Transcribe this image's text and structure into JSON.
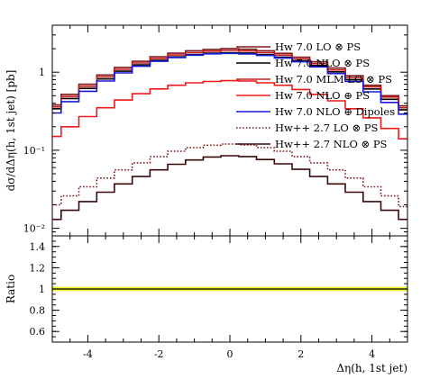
{
  "chart_data": [
    {
      "type": "line",
      "ylabel": "dσ/dΔη(h, 1st jet) [pb]",
      "yscale": "log",
      "xlim": [
        -5,
        5
      ],
      "ylim": [
        0.008,
        4
      ],
      "y_ticks": [
        0.01,
        0.1,
        1
      ],
      "y_tick_labels": [
        "10⁻²",
        "10⁻¹",
        "1"
      ],
      "legend_position": "top-right",
      "x": [
        -5,
        -4.5,
        -4,
        -3.5,
        -3,
        -2.5,
        -2,
        -1.5,
        -1,
        -0.5,
        0,
        0.5,
        1,
        1.5,
        2,
        2.5,
        3,
        3.5,
        4,
        4.5,
        5
      ],
      "series": [
        {
          "name": "Hw 7.0 LO ⊗ PS",
          "color": "#7a1a1a",
          "style": "solid",
          "values": [
            0.38,
            0.52,
            0.7,
            0.92,
            1.15,
            1.38,
            1.58,
            1.75,
            1.88,
            1.96,
            2.0,
            1.97,
            1.88,
            1.74,
            1.56,
            1.36,
            1.13,
            0.9,
            0.68,
            0.5,
            0.37
          ]
        },
        {
          "name": "Hw 7.0 NLO ⊗ PS",
          "color": "#000000",
          "style": "solid",
          "values": [
            0.34,
            0.46,
            0.62,
            0.82,
            1.03,
            1.24,
            1.42,
            1.57,
            1.68,
            1.75,
            1.78,
            1.76,
            1.68,
            1.56,
            1.4,
            1.22,
            1.01,
            0.8,
            0.61,
            0.45,
            0.33
          ]
        },
        {
          "name": "Hw 7.0 MLM LO ⊗ PS",
          "color": "#cc1a1a",
          "style": "solid",
          "values": [
            0.36,
            0.49,
            0.66,
            0.87,
            1.09,
            1.31,
            1.5,
            1.66,
            1.78,
            1.86,
            1.9,
            1.87,
            1.78,
            1.65,
            1.48,
            1.29,
            1.07,
            0.85,
            0.65,
            0.48,
            0.35
          ]
        },
        {
          "name": "Hw 7.0 NLO ⊕ PS",
          "color": "#ee1a1a",
          "style": "solid",
          "values": [
            0.15,
            0.2,
            0.27,
            0.35,
            0.44,
            0.53,
            0.61,
            0.68,
            0.73,
            0.76,
            0.78,
            0.77,
            0.73,
            0.68,
            0.6,
            0.52,
            0.43,
            0.34,
            0.26,
            0.19,
            0.14
          ]
        },
        {
          "name": "Hw 7.0 NLO ⊕ Dipoles",
          "color": "#1a1adc",
          "style": "solid",
          "values": [
            0.3,
            0.42,
            0.57,
            0.77,
            0.98,
            1.19,
            1.38,
            1.54,
            1.65,
            1.72,
            1.74,
            1.71,
            1.64,
            1.52,
            1.36,
            1.17,
            0.96,
            0.76,
            0.56,
            0.41,
            0.29
          ]
        },
        {
          "name": "Hw++ 2.7 LO ⊗ PS",
          "color": "#7a1a1a",
          "style": "dotted",
          "values": [
            0.02,
            0.026,
            0.034,
            0.044,
            0.056,
            0.069,
            0.083,
            0.097,
            0.108,
            0.116,
            0.12,
            0.117,
            0.108,
            0.097,
            0.083,
            0.069,
            0.056,
            0.044,
            0.034,
            0.026,
            0.019
          ]
        },
        {
          "name": "Hw++ 2.7 NLO ⊗ PS",
          "color": "#3a0a0a",
          "style": "solid",
          "values": [
            0.013,
            0.017,
            0.022,
            0.029,
            0.037,
            0.046,
            0.056,
            0.066,
            0.075,
            0.082,
            0.085,
            0.083,
            0.076,
            0.067,
            0.057,
            0.046,
            0.037,
            0.029,
            0.022,
            0.017,
            0.013
          ]
        }
      ]
    },
    {
      "type": "line",
      "xlabel": "Δη(h, 1st jet)",
      "ylabel": "Ratio",
      "xlim": [
        -5,
        5
      ],
      "ylim": [
        0.5,
        1.5
      ],
      "x_ticks": [
        -4,
        -2,
        0,
        2,
        4
      ],
      "x_tick_labels": [
        "-4",
        "-2",
        "0",
        "2",
        "4"
      ],
      "y_ticks": [
        0.6,
        0.8,
        1.0,
        1.2,
        1.4
      ],
      "y_tick_labels": [
        "0.6",
        "0.8",
        "1",
        "1.2",
        "1.4"
      ],
      "reference_line": 1.0,
      "band": {
        "low": 0.98,
        "high": 1.02,
        "color": "#f0f020"
      },
      "reference_color": "#000000"
    }
  ]
}
